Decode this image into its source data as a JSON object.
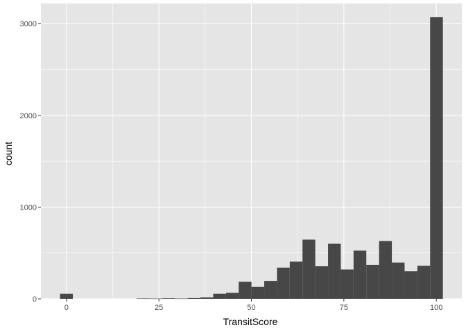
{
  "chart_data": {
    "type": "bar",
    "subtype": "histogram",
    "xlabel": "TransitScore",
    "ylabel": "count",
    "xlim": [
      -6.9,
      106.9
    ],
    "ylim": [
      0,
      3220
    ],
    "x_ticks": [
      0,
      25,
      50,
      75,
      100
    ],
    "y_ticks": [
      0,
      1000,
      2000,
      3000
    ],
    "grid": true,
    "bin_width": 3.45,
    "bins": [
      {
        "x": 0.0,
        "count": 55
      },
      {
        "x": 3.45,
        "count": 0
      },
      {
        "x": 6.9,
        "count": 0
      },
      {
        "x": 10.35,
        "count": 0
      },
      {
        "x": 13.8,
        "count": 0
      },
      {
        "x": 17.25,
        "count": 0
      },
      {
        "x": 20.7,
        "count": 4
      },
      {
        "x": 24.15,
        "count": 3
      },
      {
        "x": 27.6,
        "count": 6
      },
      {
        "x": 31.05,
        "count": 3
      },
      {
        "x": 34.5,
        "count": 8
      },
      {
        "x": 37.95,
        "count": 15
      },
      {
        "x": 41.4,
        "count": 55
      },
      {
        "x": 44.85,
        "count": 65
      },
      {
        "x": 48.3,
        "count": 185
      },
      {
        "x": 51.75,
        "count": 130
      },
      {
        "x": 55.2,
        "count": 195
      },
      {
        "x": 58.65,
        "count": 340
      },
      {
        "x": 62.1,
        "count": 405
      },
      {
        "x": 65.55,
        "count": 645
      },
      {
        "x": 69.0,
        "count": 355
      },
      {
        "x": 72.45,
        "count": 600
      },
      {
        "x": 75.9,
        "count": 320
      },
      {
        "x": 79.35,
        "count": 525
      },
      {
        "x": 82.8,
        "count": 370
      },
      {
        "x": 86.25,
        "count": 630
      },
      {
        "x": 89.7,
        "count": 395
      },
      {
        "x": 93.15,
        "count": 300
      },
      {
        "x": 96.6,
        "count": 360
      },
      {
        "x": 100.05,
        "count": 3070
      }
    ],
    "colors": {
      "panel": "#e5e5e5",
      "grid_major": "#ffffff",
      "bar": "#474747"
    }
  }
}
